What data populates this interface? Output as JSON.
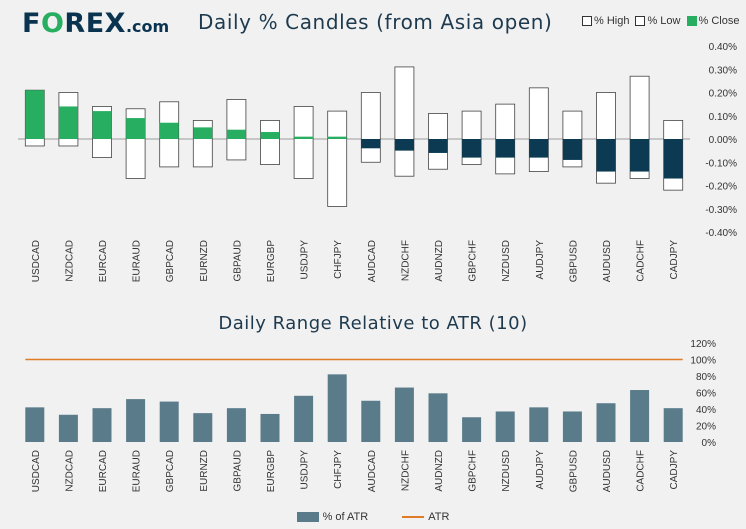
{
  "logo": {
    "text_f": "F",
    "text_o": "O",
    "text_rex": "REX",
    "text_com": ".com"
  },
  "chart_data": [
    {
      "type": "candlestick",
      "title": "Daily % Candles (from Asia open)",
      "legend": {
        "high": "% High",
        "low": "% Low",
        "close": "% Close"
      },
      "categories": [
        "USDCAD",
        "NZDCAD",
        "EURCAD",
        "EURAUD",
        "GBPCAD",
        "EURNZD",
        "GBPAUD",
        "EURGBP",
        "USDJPY",
        "CHFJPY",
        "AUDCAD",
        "NZDCHF",
        "AUDNZD",
        "GBPCHF",
        "NZDUSD",
        "AUDJPY",
        "GBPUSD",
        "AUDUSD",
        "CADCHF",
        "CADJPY"
      ],
      "high": [
        0.21,
        0.2,
        0.14,
        0.13,
        0.16,
        0.08,
        0.17,
        0.08,
        0.14,
        0.12,
        0.2,
        0.31,
        0.11,
        0.12,
        0.15,
        0.22,
        0.12,
        0.2,
        0.27,
        0.08
      ],
      "low": [
        -0.03,
        -0.03,
        -0.08,
        -0.17,
        -0.12,
        -0.12,
        -0.09,
        -0.11,
        -0.17,
        -0.29,
        -0.1,
        -0.16,
        -0.13,
        -0.11,
        -0.15,
        -0.14,
        -0.12,
        -0.19,
        -0.17,
        -0.22
      ],
      "close": [
        0.21,
        0.14,
        0.12,
        0.09,
        0.07,
        0.05,
        0.04,
        0.03,
        0.01,
        0.01,
        -0.04,
        -0.05,
        -0.06,
        -0.08,
        -0.08,
        -0.08,
        -0.09,
        -0.14,
        -0.14,
        -0.17
      ],
      "ylim": [
        -0.4,
        0.4
      ],
      "yticks": [
        "0.40%",
        "0.30%",
        "0.20%",
        "0.10%",
        "0.00%",
        "-0.10%",
        "-0.20%",
        "-0.30%",
        "-0.40%"
      ],
      "colors": {
        "up": "#27ae60",
        "down": "#0b3a52",
        "outline": "#444444"
      }
    },
    {
      "type": "bar",
      "title": "Daily Range Relative to ATR (10)",
      "categories": [
        "USDCAD",
        "NZDCAD",
        "EURCAD",
        "EURAUD",
        "GBPCAD",
        "EURNZD",
        "GBPAUD",
        "EURGBP",
        "USDJPY",
        "CHFJPY",
        "AUDCAD",
        "NZDCHF",
        "AUDNZD",
        "GBPCHF",
        "NZDUSD",
        "AUDJPY",
        "GBPUSD",
        "AUDUSD",
        "CADCHF",
        "CADJPY"
      ],
      "series": [
        {
          "name": "% of ATR",
          "values": [
            42,
            33,
            41,
            52,
            49,
            35,
            41,
            34,
            56,
            82,
            50,
            66,
            59,
            30,
            37,
            42,
            37,
            47,
            63,
            41
          ]
        },
        {
          "name": "ATR",
          "values": [
            100,
            100,
            100,
            100,
            100,
            100,
            100,
            100,
            100,
            100,
            100,
            100,
            100,
            100,
            100,
            100,
            100,
            100,
            100,
            100
          ]
        }
      ],
      "ylim": [
        0,
        120
      ],
      "yticks": [
        "120%",
        "100%",
        "80%",
        "60%",
        "40%",
        "20%",
        "0%"
      ],
      "legend": {
        "bar": "% of ATR",
        "line": "ATR"
      },
      "colors": {
        "bar": "#5a7c8a",
        "line": "#e07b26"
      }
    }
  ]
}
